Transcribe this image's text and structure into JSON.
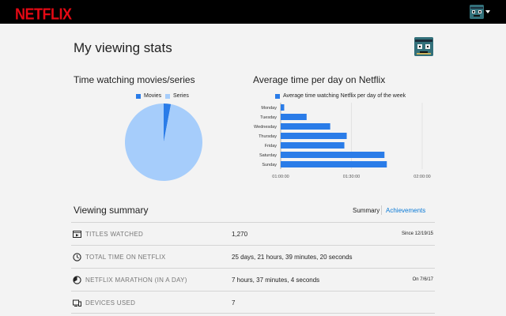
{
  "app": {
    "logo": "NETFLIX"
  },
  "page": {
    "title": "My viewing stats"
  },
  "pie": {
    "title": "Time watching movies/series",
    "legend": [
      {
        "label": "Movies",
        "color": "#2a7ce8"
      },
      {
        "label": "Series",
        "color": "#a6cdfb"
      }
    ]
  },
  "bars": {
    "title": "Average time per day on Netflix",
    "legend_label": "Average time watching Netflix per day of the week",
    "color": "#2a7ce8"
  },
  "chart_data": [
    {
      "type": "pie",
      "title": "Time watching movies/series",
      "labels": [
        "Movies",
        "Series"
      ],
      "values": [
        3,
        97
      ],
      "colors": [
        "#2a7ce8",
        "#a6cdfb"
      ]
    },
    {
      "type": "bar",
      "orientation": "horizontal",
      "title": "Average time per day on Netflix",
      "categories": [
        "Monday",
        "Tuesday",
        "Wednesday",
        "Thursday",
        "Friday",
        "Saturday",
        "Sunday"
      ],
      "series": [
        {
          "name": "Average time watching Netflix per day of the week",
          "values": [
            "01:01:30",
            "01:11:00",
            "01:21:00",
            "01:28:00",
            "01:27:00",
            "01:44:00",
            "01:45:00"
          ]
        }
      ],
      "x_ticks": [
        "01:00:00",
        "01:30:00",
        "02:00:00"
      ],
      "xlim": [
        "01:00:00",
        "02:00:00"
      ],
      "grid": true,
      "legend_position": "top"
    }
  ],
  "summary": {
    "title": "Viewing summary",
    "tabs": [
      {
        "label": "Summary",
        "active": true
      },
      {
        "label": "Achievements",
        "active": false
      }
    ],
    "rows": [
      {
        "icon": "film-icon",
        "label": "TITLES WATCHED",
        "value": "1,270",
        "note": "Since 12/19/15"
      },
      {
        "icon": "clock-icon",
        "label": "TOTAL TIME ON NETFLIX",
        "value": "25 days, 21 hours, 39 minutes, 20 seconds",
        "note": ""
      },
      {
        "icon": "stopwatch-icon",
        "label": "NETFLIX MARATHON (IN A DAY)",
        "value": "7 hours, 37 minutes, 4 seconds",
        "note": "On 7/6/17"
      },
      {
        "icon": "devices-icon",
        "label": "DEVICES USED",
        "value": "7",
        "note": ""
      }
    ]
  }
}
